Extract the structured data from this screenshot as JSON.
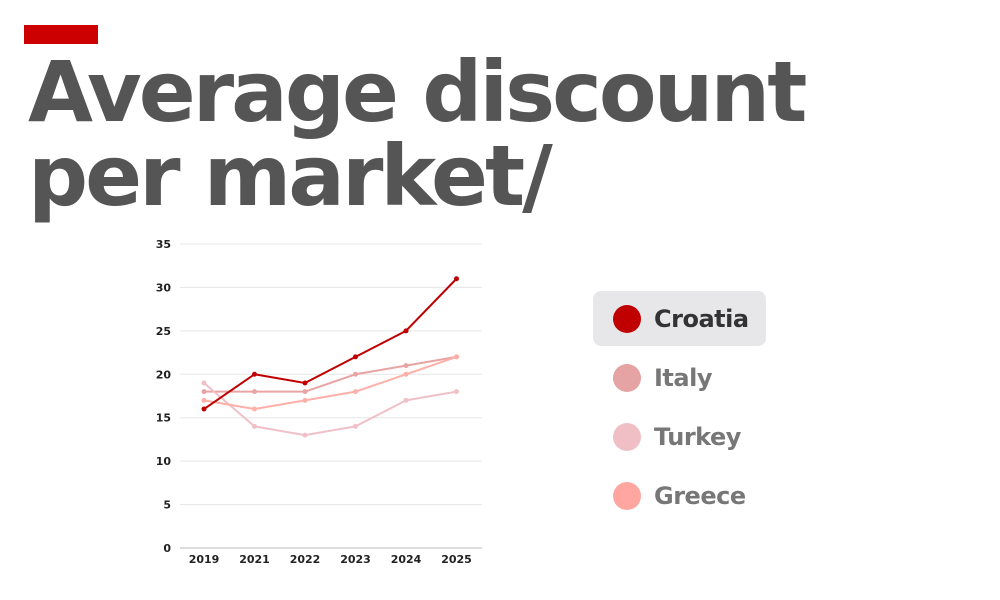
{
  "title": {
    "line1": "Average discount",
    "line2": "per market/"
  },
  "colors": {
    "accent": "#cc0000",
    "title": "#555555"
  },
  "chart_data": {
    "type": "line",
    "title": "Average discount per market/",
    "categories": [
      "2019",
      "2021",
      "2022",
      "2023",
      "2024",
      "2025"
    ],
    "ylim": [
      0,
      35
    ],
    "yticks": [
      "0",
      "5",
      "10",
      "15",
      "20",
      "25",
      "30",
      "35"
    ],
    "grid": true,
    "legend_position": "right",
    "series": [
      {
        "name": "Italy",
        "color": "#e8a3a3",
        "values": [
          18,
          18,
          18,
          20,
          21,
          22
        ]
      },
      {
        "name": "Turkey",
        "color": "#f0c0c8",
        "values": [
          19,
          14,
          13,
          14,
          17,
          18
        ]
      },
      {
        "name": "Greece",
        "color": "#ffb0a8",
        "values": [
          17,
          16,
          17,
          18,
          20,
          22
        ]
      },
      {
        "name": "Croatia",
        "color": "#c00000",
        "values": [
          16,
          20,
          19,
          22,
          25,
          31
        ]
      }
    ]
  },
  "legend": {
    "items": [
      {
        "label": "Croatia",
        "color": "#c00000",
        "active": true
      },
      {
        "label": "Italy",
        "color": "#e5a3a3",
        "active": false
      },
      {
        "label": "Turkey",
        "color": "#f0bfc6",
        "active": false
      },
      {
        "label": "Greece",
        "color": "#ffa6a0",
        "active": false
      }
    ]
  }
}
